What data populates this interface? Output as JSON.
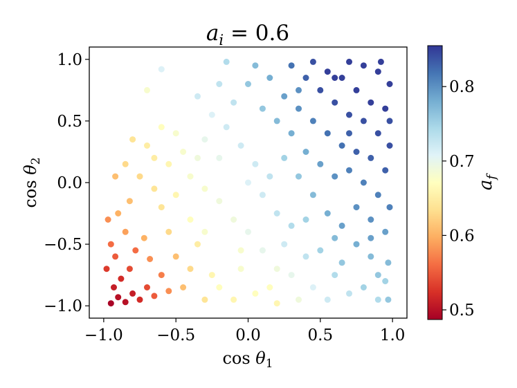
{
  "chart_data": {
    "type": "scatter",
    "title": "a_i = 0.6",
    "title_parts": {
      "var": "a",
      "sub": "i",
      "rest": " = 0.6"
    },
    "xlabel": "cos θ1",
    "xlabel_parts": {
      "fn": "cos ",
      "var": "θ",
      "sub": "1"
    },
    "ylabel": "cos θ2",
    "ylabel_parts": {
      "fn": "cos ",
      "var": "θ",
      "sub": "2"
    },
    "xlim": [
      -1.1,
      1.1
    ],
    "ylim": [
      -1.1,
      1.1
    ],
    "x_ticks": [
      -1.0,
      -0.5,
      0.0,
      0.5,
      1.0
    ],
    "x_tick_labels": [
      "−1.0",
      "−0.5",
      "0.0",
      "0.5",
      "1.0"
    ],
    "y_ticks": [
      -1.0,
      -0.5,
      0.0,
      0.5,
      1.0
    ],
    "y_tick_labels": [
      "−1.0",
      "−0.5",
      "0.0",
      "0.5",
      "1.0"
    ],
    "grid": false,
    "colormap": "RdYlBu",
    "colorbar": {
      "label": "a_f",
      "label_parts": {
        "var": "a",
        "sub": "f"
      },
      "range": [
        0.487,
        0.855
      ],
      "ticks": [
        0.5,
        0.6,
        0.7,
        0.8
      ],
      "tick_labels": [
        "0.5",
        "0.6",
        "0.7",
        "0.8"
      ],
      "colors": [
        "#a50026",
        "#d73027",
        "#f46d43",
        "#fdae61",
        "#fee090",
        "#ffffbf",
        "#e0f3f8",
        "#abd9e9",
        "#74add1",
        "#4575b4",
        "#313695"
      ]
    },
    "points": [
      [
        -0.95,
        -0.98,
        0.49
      ],
      [
        -0.9,
        -0.93,
        0.5
      ],
      [
        -0.85,
        -0.97,
        0.5
      ],
      [
        -0.8,
        -0.9,
        0.51
      ],
      [
        -0.93,
        -0.85,
        0.51
      ],
      [
        -0.88,
        -0.78,
        0.52
      ],
      [
        -0.75,
        -0.95,
        0.52
      ],
      [
        -0.7,
        -0.85,
        0.54
      ],
      [
        -0.82,
        -0.7,
        0.54
      ],
      [
        -0.92,
        -0.6,
        0.55
      ],
      [
        -0.78,
        -0.55,
        0.56
      ],
      [
        -0.65,
        -0.92,
        0.55
      ],
      [
        -0.6,
        -0.75,
        0.57
      ],
      [
        -0.55,
        -0.88,
        0.58
      ],
      [
        -0.68,
        -0.62,
        0.58
      ],
      [
        -0.72,
        -0.45,
        0.6
      ],
      [
        -0.85,
        -0.4,
        0.59
      ],
      [
        -0.95,
        -0.5,
        0.56
      ],
      [
        -0.9,
        -0.25,
        0.6
      ],
      [
        -0.82,
        -0.15,
        0.61
      ],
      [
        -0.75,
        0.05,
        0.63
      ],
      [
        -0.85,
        0.15,
        0.63
      ],
      [
        -0.92,
        0.05,
        0.61
      ],
      [
        -0.7,
        0.3,
        0.65
      ],
      [
        -0.8,
        0.35,
        0.64
      ],
      [
        -0.6,
        0.45,
        0.67
      ],
      [
        -0.5,
        0.4,
        0.68
      ],
      [
        -0.5,
        -0.6,
        0.61
      ],
      [
        -0.45,
        -0.85,
        0.61
      ],
      [
        -0.4,
        -0.7,
        0.63
      ],
      [
        -0.35,
        -0.5,
        0.65
      ],
      [
        -0.55,
        -0.4,
        0.63
      ],
      [
        -0.6,
        -0.2,
        0.64
      ],
      [
        -0.5,
        -0.1,
        0.66
      ],
      [
        -0.4,
        -0.3,
        0.67
      ],
      [
        -0.3,
        -0.4,
        0.68
      ],
      [
        -0.25,
        -0.75,
        0.66
      ],
      [
        -0.3,
        -0.95,
        0.64
      ],
      [
        -0.2,
        -0.85,
        0.67
      ],
      [
        -0.1,
        -0.95,
        0.66
      ],
      [
        -0.05,
        -0.7,
        0.68
      ],
      [
        0.05,
        -0.9,
        0.67
      ],
      [
        0.15,
        -0.85,
        0.67
      ],
      [
        0.2,
        -0.98,
        0.66
      ],
      [
        0.3,
        -0.75,
        0.7
      ],
      [
        0.35,
        -0.95,
        0.69
      ],
      [
        0.45,
        -0.85,
        0.71
      ],
      [
        0.55,
        -0.95,
        0.72
      ],
      [
        0.6,
        -0.75,
        0.74
      ],
      [
        0.7,
        -0.9,
        0.73
      ],
      [
        0.8,
        -0.85,
        0.75
      ],
      [
        0.9,
        -0.95,
        0.74
      ],
      [
        0.95,
        -0.8,
        0.75
      ],
      [
        0.97,
        -0.65,
        0.77
      ],
      [
        0.85,
        -0.6,
        0.77
      ],
      [
        0.75,
        -0.5,
        0.78
      ],
      [
        0.65,
        -0.65,
        0.76
      ],
      [
        0.5,
        -0.55,
        0.75
      ],
      [
        0.4,
        -0.6,
        0.73
      ],
      [
        0.25,
        -0.5,
        0.72
      ],
      [
        0.1,
        -0.55,
        0.7
      ],
      [
        0.0,
        -0.4,
        0.7
      ],
      [
        -0.1,
        -0.3,
        0.69
      ],
      [
        -0.2,
        -0.15,
        0.69
      ],
      [
        -0.3,
        -0.05,
        0.68
      ],
      [
        -0.4,
        0.05,
        0.68
      ],
      [
        -0.35,
        0.2,
        0.69
      ],
      [
        -0.3,
        0.35,
        0.7
      ],
      [
        -0.45,
        0.25,
        0.68
      ],
      [
        -0.55,
        0.15,
        0.66
      ],
      [
        -0.65,
        0.2,
        0.65
      ],
      [
        -0.25,
        0.55,
        0.71
      ],
      [
        -0.35,
        0.7,
        0.72
      ],
      [
        -0.2,
        0.8,
        0.73
      ],
      [
        -0.1,
        0.65,
        0.73
      ],
      [
        -0.15,
        0.45,
        0.72
      ],
      [
        -0.05,
        0.3,
        0.72
      ],
      [
        0.05,
        0.15,
        0.72
      ],
      [
        0.0,
        0.0,
        0.71
      ],
      [
        0.1,
        -0.1,
        0.72
      ],
      [
        0.2,
        -0.25,
        0.73
      ],
      [
        0.3,
        -0.35,
        0.74
      ],
      [
        0.15,
        0.05,
        0.73
      ],
      [
        0.25,
        0.2,
        0.75
      ],
      [
        0.35,
        0.05,
        0.76
      ],
      [
        0.45,
        -0.1,
        0.77
      ],
      [
        0.55,
        -0.25,
        0.78
      ],
      [
        0.65,
        -0.35,
        0.79
      ],
      [
        0.75,
        -0.2,
        0.8
      ],
      [
        0.85,
        -0.3,
        0.8
      ],
      [
        0.95,
        -0.4,
        0.79
      ],
      [
        0.9,
        -0.1,
        0.81
      ],
      [
        0.8,
        0.0,
        0.81
      ],
      [
        0.7,
        0.1,
        0.81
      ],
      [
        0.6,
        0.05,
        0.8
      ],
      [
        0.5,
        0.15,
        0.79
      ],
      [
        0.4,
        0.25,
        0.78
      ],
      [
        0.3,
        0.4,
        0.78
      ],
      [
        0.2,
        0.5,
        0.77
      ],
      [
        0.1,
        0.6,
        0.76
      ],
      [
        0.0,
        0.8,
        0.76
      ],
      [
        0.05,
        0.95,
        0.77
      ],
      [
        0.15,
        0.85,
        0.78
      ],
      [
        0.25,
        0.7,
        0.79
      ],
      [
        0.35,
        0.6,
        0.8
      ],
      [
        0.45,
        0.5,
        0.81
      ],
      [
        0.55,
        0.4,
        0.82
      ],
      [
        0.65,
        0.3,
        0.82
      ],
      [
        0.75,
        0.25,
        0.83
      ],
      [
        0.85,
        0.2,
        0.83
      ],
      [
        0.95,
        0.1,
        0.83
      ],
      [
        0.98,
        0.3,
        0.84
      ],
      [
        0.9,
        0.4,
        0.84
      ],
      [
        0.8,
        0.5,
        0.84
      ],
      [
        0.7,
        0.55,
        0.84
      ],
      [
        0.6,
        0.65,
        0.84
      ],
      [
        0.5,
        0.75,
        0.84
      ],
      [
        0.4,
        0.85,
        0.83
      ],
      [
        0.3,
        0.95,
        0.82
      ],
      [
        0.45,
        0.98,
        0.84
      ],
      [
        0.55,
        0.9,
        0.85
      ],
      [
        0.65,
        0.85,
        0.85
      ],
      [
        0.75,
        0.75,
        0.85
      ],
      [
        0.85,
        0.65,
        0.85
      ],
      [
        0.95,
        0.6,
        0.85
      ],
      [
        0.98,
        0.8,
        0.85
      ],
      [
        0.9,
        0.9,
        0.85
      ],
      [
        0.8,
        0.95,
        0.85
      ],
      [
        0.7,
        0.98,
        0.85
      ],
      [
        0.92,
        0.98,
        0.85
      ],
      [
        -0.6,
        0.92,
        0.71
      ],
      [
        -0.7,
        0.75,
        0.68
      ],
      [
        -0.15,
        0.98,
        0.74
      ],
      [
        0.97,
        -0.95,
        0.76
      ],
      [
        0.9,
        -0.75,
        0.76
      ],
      [
        -0.98,
        -0.7,
        0.53
      ],
      [
        -0.97,
        -0.3,
        0.58
      ],
      [
        -0.65,
        -0.05,
        0.64
      ],
      [
        -0.2,
        0.2,
        0.7
      ],
      [
        0.2,
        -0.7,
        0.69
      ],
      [
        -0.05,
        -0.55,
        0.68
      ],
      [
        0.4,
        -0.3,
        0.75
      ],
      [
        0.6,
        -0.45,
        0.77
      ],
      [
        0.85,
        -0.45,
        0.79
      ],
      [
        0.7,
        0.4,
        0.83
      ],
      [
        0.35,
        0.75,
        0.8
      ],
      [
        0.6,
        0.85,
        0.85
      ],
      [
        0.98,
        -0.2,
        0.81
      ],
      [
        0.98,
        0.5,
        0.84
      ]
    ]
  }
}
